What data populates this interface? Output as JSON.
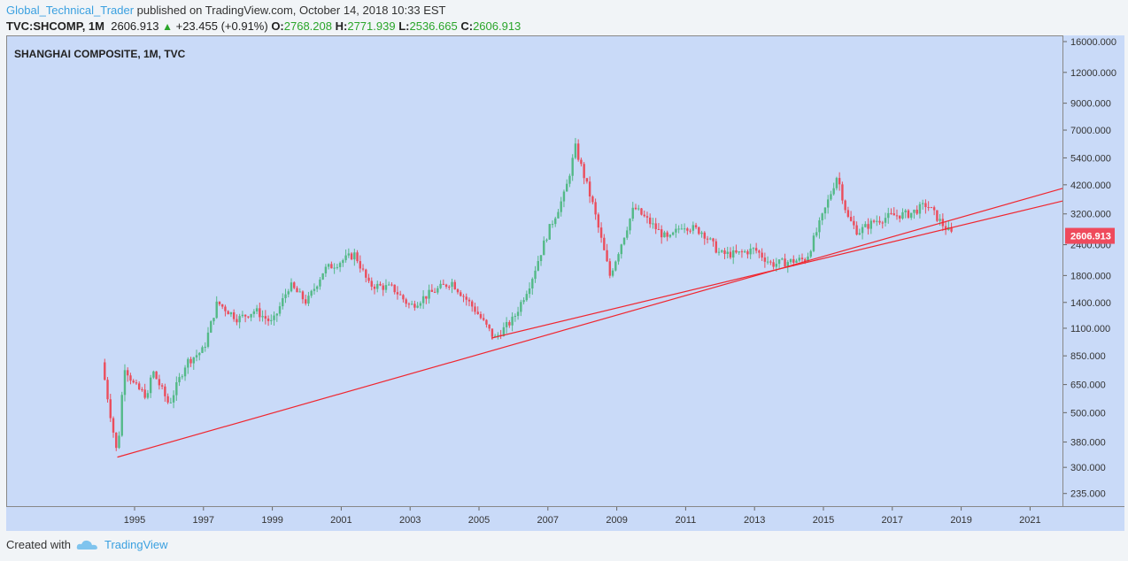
{
  "header": {
    "author": "Global_Technical_Trader",
    "published": "published on TradingView.com, October 14, 2018 10:33 EST",
    "symbol": "TVC:SHCOMP, 1M",
    "last": "2606.913",
    "change": "+23.455 (+0.91%)",
    "o_label": "O:",
    "o": "2768.208",
    "h_label": "H:",
    "h": "2771.939",
    "l_label": "L:",
    "l": "2536.665",
    "c_label": "C:",
    "c": "2606.913"
  },
  "footer": {
    "created_with": "Created with",
    "brand": "TradingView"
  },
  "colors": {
    "chart_bg": "#c9daf8",
    "up": "#53b987",
    "down": "#eb4d5c",
    "trend": "#f0262f",
    "price_label": "#ef4a5c"
  },
  "chart_data": {
    "type": "candlestick",
    "title": "SHANGHAI COMPOSITE, 1M, TVC",
    "yscale": "log",
    "ylim": [
      212,
      17000
    ],
    "xlim": [
      1993.2,
      2022.05
    ],
    "yticks": [
      "16000.000",
      "12000.000",
      "9000.000",
      "7000.000",
      "5400.000",
      "4200.000",
      "3200.000",
      "2400.000",
      "1800.000",
      "1400.000",
      "1100.000",
      "850.000",
      "650.000",
      "500.000",
      "380.000",
      "300.000",
      "235.000"
    ],
    "xticks": [
      "1995",
      "1997",
      "1999",
      "2001",
      "2003",
      "2005",
      "2007",
      "2009",
      "2011",
      "2013",
      "2015",
      "2017",
      "2019",
      "2021"
    ],
    "last_price_label": "2606.913",
    "close_anchors": [
      [
        1994.05,
        800
      ],
      [
        1994.5,
        333
      ],
      [
        1994.7,
        780
      ],
      [
        1995.0,
        640
      ],
      [
        1995.4,
        580
      ],
      [
        1995.5,
        750
      ],
      [
        1996.0,
        540
      ],
      [
        1996.5,
        800
      ],
      [
        1997.0,
        900
      ],
      [
        1997.4,
        1400
      ],
      [
        1998.0,
        1200
      ],
      [
        1998.5,
        1300
      ],
      [
        1999.0,
        1150
      ],
      [
        1999.5,
        1650
      ],
      [
        2000.0,
        1400
      ],
      [
        2000.5,
        1900
      ],
      [
        2001.4,
        2200
      ],
      [
        2001.8,
        1650
      ],
      [
        2002.5,
        1600
      ],
      [
        2003.0,
        1350
      ],
      [
        2003.5,
        1500
      ],
      [
        2004.2,
        1700
      ],
      [
        2004.9,
        1300
      ],
      [
        2005.45,
        1000
      ],
      [
        2006.0,
        1200
      ],
      [
        2006.5,
        1700
      ],
      [
        2007.0,
        2700
      ],
      [
        2007.5,
        3900
      ],
      [
        2007.8,
        5950
      ],
      [
        2008.3,
        3500
      ],
      [
        2008.8,
        1800
      ],
      [
        2009.5,
        3400
      ],
      [
        2010.5,
        2500
      ],
      [
        2010.9,
        2900
      ],
      [
        2011.5,
        2700
      ],
      [
        2012.0,
        2200
      ],
      [
        2012.5,
        2200
      ],
      [
        2013.0,
        2300
      ],
      [
        2013.5,
        2000
      ],
      [
        2014.5,
        2100
      ],
      [
        2015.0,
        3200
      ],
      [
        2015.4,
        4600
      ],
      [
        2015.7,
        3100
      ],
      [
        2016.0,
        2700
      ],
      [
        2016.5,
        3000
      ],
      [
        2017.0,
        3150
      ],
      [
        2017.5,
        3200
      ],
      [
        2018.0,
        3500
      ],
      [
        2018.5,
        2850
      ],
      [
        2018.78,
        2607
      ]
    ],
    "trendlines": [
      {
        "from": [
          1994.5,
          330
        ],
        "to": [
          2022.04,
          4060
        ]
      },
      {
        "from": [
          2005.36,
          1003
        ],
        "to": [
          2022.04,
          3610
        ]
      }
    ]
  }
}
